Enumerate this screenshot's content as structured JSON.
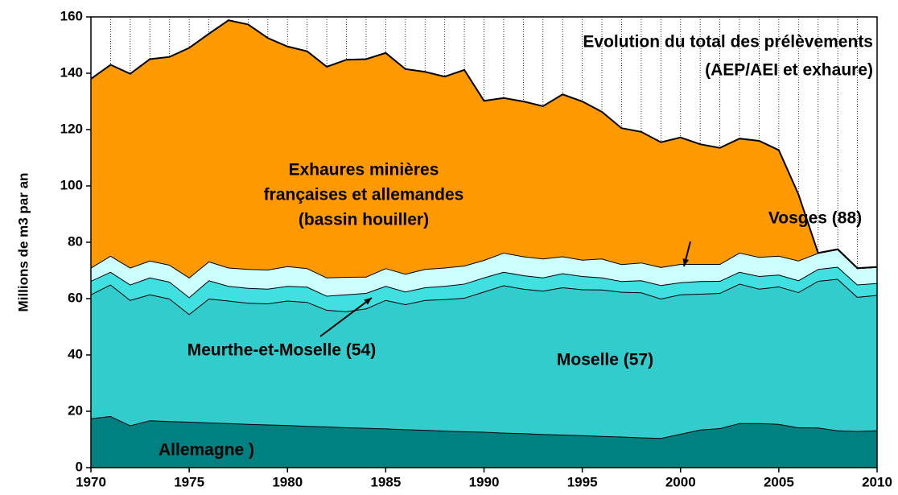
{
  "chart_data": {
    "type": "stacked-area",
    "title": [
      "Evolution du total des prélèvements",
      "(AEP/AEI et exhaure)"
    ],
    "y_label": "Millions  de  m3  par  an",
    "x": [
      1970,
      1971,
      1972,
      1973,
      1974,
      1975,
      1976,
      1977,
      1978,
      1979,
      1980,
      1981,
      1982,
      1983,
      1984,
      1985,
      1986,
      1987,
      1988,
      1989,
      1990,
      1991,
      1992,
      1993,
      1994,
      1995,
      1996,
      1997,
      1998,
      1999,
      2000,
      2001,
      2002,
      2003,
      2004,
      2005,
      2006,
      2007,
      2008,
      2009,
      2010
    ],
    "xlim": [
      1970,
      2010
    ],
    "xticks": [
      1970,
      1975,
      1980,
      1985,
      1990,
      1995,
      2000,
      2005,
      2010
    ],
    "ylim": [
      0,
      160
    ],
    "yticks": [
      0,
      20,
      40,
      60,
      80,
      100,
      120,
      140,
      160
    ],
    "x_grid": true,
    "series": [
      {
        "name": "Allemagne )",
        "color": "#008080",
        "values": [
          17.5,
          18.3,
          15,
          16.8,
          16.5,
          16.3,
          16.0,
          15.8,
          15.5,
          15.3,
          15.1,
          14.8,
          14.6,
          14.3,
          14.1,
          13.9,
          13.6,
          13.4,
          13.1,
          12.9,
          12.7,
          12.4,
          12.2,
          11.9,
          11.7,
          11.5,
          11.2,
          11.0,
          10.7,
          10.5,
          12,
          13.5,
          14,
          15.8,
          15.8,
          15.5,
          14.3,
          14.2,
          13.2,
          13,
          13.2
        ]
      },
      {
        "name": "Moselle (57)",
        "color": "#33CCCC",
        "values": [
          44,
          46.7,
          44.5,
          44.7,
          43.5,
          38.2,
          44,
          43.5,
          43,
          43,
          44.2,
          44,
          41.4,
          41.2,
          42.4,
          45.6,
          44.4,
          46.1,
          46.7,
          47.4,
          49.8,
          52.3,
          51.3,
          50.9,
          52.3,
          51.8,
          52,
          51.4,
          51.5,
          49.5,
          49.5,
          48.2,
          48,
          49.5,
          47.7,
          48.8,
          48,
          52.1,
          53.8,
          47.6,
          48.1
        ]
      },
      {
        "name": "Meurthe-et-Moselle (54)",
        "color": "#40E0E0",
        "values": [
          4.8,
          4.5,
          5.5,
          6,
          6,
          6,
          6.5,
          5.2,
          5.3,
          5.2,
          5.2,
          5.4,
          5,
          6,
          5.5,
          5,
          4.5,
          4.5,
          4.7,
          5,
          5,
          4.8,
          4.8,
          4.7,
          5,
          4.7,
          4.3,
          3.8,
          4.3,
          4.8,
          4.3,
          4.5,
          4.3,
          4.2,
          4.5,
          4.2,
          4.2,
          4.2,
          4.3,
          4.4,
          4.2
        ]
      },
      {
        "name": "Vosges (88)",
        "color": "#CCFFFF",
        "values": [
          4.7,
          5.7,
          6,
          6,
          6,
          7,
          6.7,
          6.5,
          6.7,
          6.8,
          7,
          6.6,
          6.5,
          6.2,
          5.8,
          6.3,
          6.3,
          6.5,
          6.5,
          6.4,
          6.2,
          6.8,
          6.7,
          6.7,
          6,
          5.8,
          6.7,
          6,
          6.3,
          6.4,
          6.5,
          6.1,
          6,
          6.8,
          6.8,
          6.7,
          7,
          5.7,
          6.2,
          5.8,
          5.7
        ]
      },
      {
        "name": [
          "Exhaures minières",
          "françaises et allemandes",
          "(bassin houiller)"
        ],
        "color": "#FF9900",
        "values": [
          67,
          67.8,
          68.8,
          71.5,
          73.8,
          81.5,
          80.8,
          87.8,
          86.8,
          82.2,
          78,
          77,
          74.8,
          77.1,
          77.2,
          76.4,
          72.7,
          70,
          67.8,
          69.5,
          56.5,
          54.9,
          55,
          54.1,
          57.5,
          56.2,
          52.1,
          48.3,
          46.4,
          44.3,
          44.9,
          42.5,
          41.2,
          40.5,
          41.2,
          37.5,
          23.5,
          0,
          0,
          0,
          0
        ]
      }
    ]
  }
}
